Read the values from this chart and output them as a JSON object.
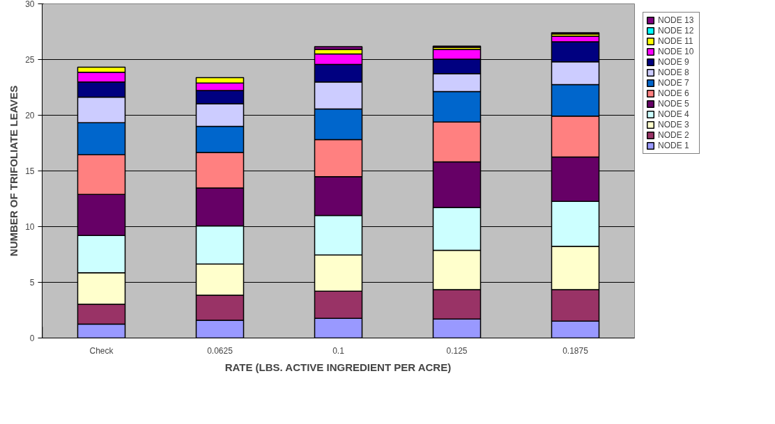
{
  "chart_data": {
    "type": "bar",
    "stacked": true,
    "xlabel": "RATE (LBS. ACTIVE INGREDIENT PER ACRE)",
    "ylabel": "NUMBER OF TRIFOLIATE LEAVES",
    "categories": [
      "Check",
      "0.0625",
      "0.1",
      "0.125",
      "0.1875"
    ],
    "ylim": [
      0,
      30
    ],
    "yticks": [
      0,
      5,
      10,
      15,
      20,
      25,
      30
    ],
    "grid": "y",
    "legend": "right",
    "series": [
      {
        "name": "NODE 1",
        "color": "#9999ff",
        "values": [
          1.25,
          1.6,
          1.76,
          1.7,
          1.52
        ]
      },
      {
        "name": "NODE 2",
        "color": "#993366",
        "values": [
          1.78,
          2.25,
          2.44,
          2.64,
          2.82
        ]
      },
      {
        "name": "NODE 3",
        "color": "#ffffcc",
        "values": [
          2.83,
          2.79,
          3.26,
          3.53,
          3.9
        ]
      },
      {
        "name": "NODE 4",
        "color": "#ccffff",
        "values": [
          3.35,
          3.42,
          3.54,
          3.85,
          4.02
        ]
      },
      {
        "name": "NODE 5",
        "color": "#660066",
        "values": [
          3.68,
          3.41,
          3.49,
          4.1,
          3.99
        ]
      },
      {
        "name": "NODE 6",
        "color": "#ff8080",
        "values": [
          3.57,
          3.19,
          3.32,
          3.57,
          3.67
        ]
      },
      {
        "name": "NODE 7",
        "color": "#0066cc",
        "values": [
          2.87,
          2.34,
          2.75,
          2.74,
          2.83
        ]
      },
      {
        "name": "NODE 8",
        "color": "#ccccff",
        "values": [
          2.29,
          2.03,
          2.42,
          1.6,
          2.05
        ]
      },
      {
        "name": "NODE 9",
        "color": "#000080",
        "values": [
          1.36,
          1.19,
          1.58,
          1.3,
          1.8
        ]
      },
      {
        "name": "NODE 10",
        "color": "#ff00ff",
        "values": [
          0.88,
          0.67,
          0.94,
          0.87,
          0.5
        ]
      },
      {
        "name": "NODE 11",
        "color": "#ffff00",
        "values": [
          0.45,
          0.49,
          0.4,
          0.2,
          0.2
        ]
      },
      {
        "name": "NODE 12",
        "color": "#00ffff",
        "values": [
          0,
          0,
          0,
          0,
          0
        ]
      },
      {
        "name": "NODE 13",
        "color": "#800080",
        "values": [
          0,
          0,
          0.25,
          0.1,
          0.1
        ]
      }
    ]
  }
}
